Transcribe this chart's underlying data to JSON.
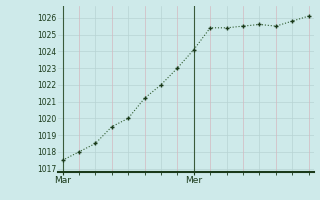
{
  "x": [
    0,
    1,
    2,
    3,
    4,
    5,
    6,
    7,
    8,
    9,
    10,
    11,
    12,
    13,
    14,
    15
  ],
  "y": [
    1017.5,
    1018.0,
    1018.5,
    1019.5,
    1020.0,
    1021.2,
    1022.0,
    1023.0,
    1024.1,
    1025.4,
    1025.4,
    1025.5,
    1025.6,
    1025.5,
    1025.8,
    1026.1
  ],
  "xlim": [
    -0.3,
    15.3
  ],
  "ylim": [
    1016.8,
    1026.7
  ],
  "yticks": [
    1017,
    1018,
    1019,
    1020,
    1021,
    1022,
    1023,
    1024,
    1025,
    1026
  ],
  "xtick_positions": [
    0,
    8
  ],
  "xtick_labels": [
    "Mar",
    "Mer"
  ],
  "vline_positions": [
    0,
    8
  ],
  "line_color": "#2d5a2d",
  "marker_color": "#1a3a1a",
  "bg_color": "#ceeaea",
  "grid_color": "#b8d4d4",
  "grid_color_pink": "#d4b8c0",
  "axis_color": "#1a3a1a",
  "ytick_fontsize": 5.5,
  "xtick_fontsize": 6.5
}
